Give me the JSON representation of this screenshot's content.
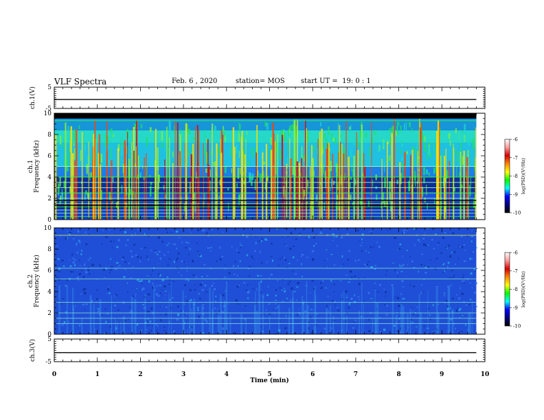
{
  "header": {
    "title": "VLF Spectra",
    "date": "Feb. 6 , 2020",
    "station": "station= MOS",
    "start_ut": "start UT =  19: 0 : 1"
  },
  "chart_data": [
    {
      "type": "line",
      "panel": "ch1-waveform",
      "ylabel": "ch.1(V)",
      "ylim": [
        -5,
        5
      ],
      "yticks": [
        "5",
        "-5"
      ],
      "xlim": [
        0,
        10
      ],
      "series": [
        {
          "x": [
            0,
            9.8
          ],
          "values": [
            -0.8,
            -0.8
          ]
        }
      ]
    },
    {
      "type": "heatmap",
      "panel": "ch1-spectrogram",
      "ylabel": "ch.1\nFrequency (kHz)",
      "ylim": [
        0,
        10
      ],
      "yticks": [
        "0",
        "2",
        "4",
        "6",
        "8",
        "10"
      ],
      "xlim": [
        0,
        10
      ],
      "data_extent_x": [
        0,
        9.8
      ],
      "colorbar": {
        "label": "log(PSD)(V²/Hz)",
        "range": [
          -10,
          -6
        ],
        "ticks": [
          "-6",
          "-7",
          "-8",
          "-9",
          "-10"
        ]
      },
      "tone_lines_khz": [
        0.3,
        0.6,
        0.9,
        1.2,
        1.5,
        2.0,
        2.5,
        3.0,
        3.5,
        4.0,
        5.0,
        9.3
      ],
      "description": "broadband emission 0-9.5 kHz with vertical impulsive bursts (sferics); dark region above ~9.5 kHz"
    },
    {
      "type": "heatmap",
      "panel": "ch2-spectrogram",
      "ylabel": "ch.2\nFrequency (kHz)",
      "ylim": [
        0,
        10
      ],
      "yticks": [
        "0",
        "2",
        "4",
        "6",
        "8",
        "10"
      ],
      "xlim": [
        0,
        10
      ],
      "data_extent_x": [
        0,
        9.8
      ],
      "colorbar": {
        "label": "log(PSD)(V²/Hz)",
        "range": [
          -10,
          -6
        ],
        "ticks": [
          "-6",
          "-7",
          "-8",
          "-9",
          "-10"
        ]
      },
      "tone_lines_khz": [
        1.0,
        1.5,
        2.0,
        3.0,
        5.2,
        6.2,
        9.3
      ],
      "description": "low-level background with faint tone lines"
    },
    {
      "type": "line",
      "panel": "ch3-waveform",
      "ylabel": "ch.3(V)",
      "ylim": [
        -5,
        5
      ],
      "yticks": [
        "5",
        "-5"
      ],
      "xlim": [
        0,
        10
      ],
      "xlabel": "Time (min)",
      "xticks": [
        "0",
        "1",
        "2",
        "3",
        "4",
        "5",
        "6",
        "7",
        "8",
        "9",
        "10"
      ],
      "series": [
        {
          "x": [
            0,
            9.8
          ],
          "values": [
            -1.0,
            -1.0
          ]
        }
      ]
    }
  ],
  "colors": {
    "ch1_background": "#0a3fb8",
    "ch2_background": "#1f4fd6",
    "colorbar_stops": [
      "#ffffff",
      "#ff9999",
      "#d80000",
      "#ff8800",
      "#ffff00",
      "#00ff00",
      "#00ffff",
      "#0000ff",
      "#000080",
      "#000000"
    ]
  }
}
